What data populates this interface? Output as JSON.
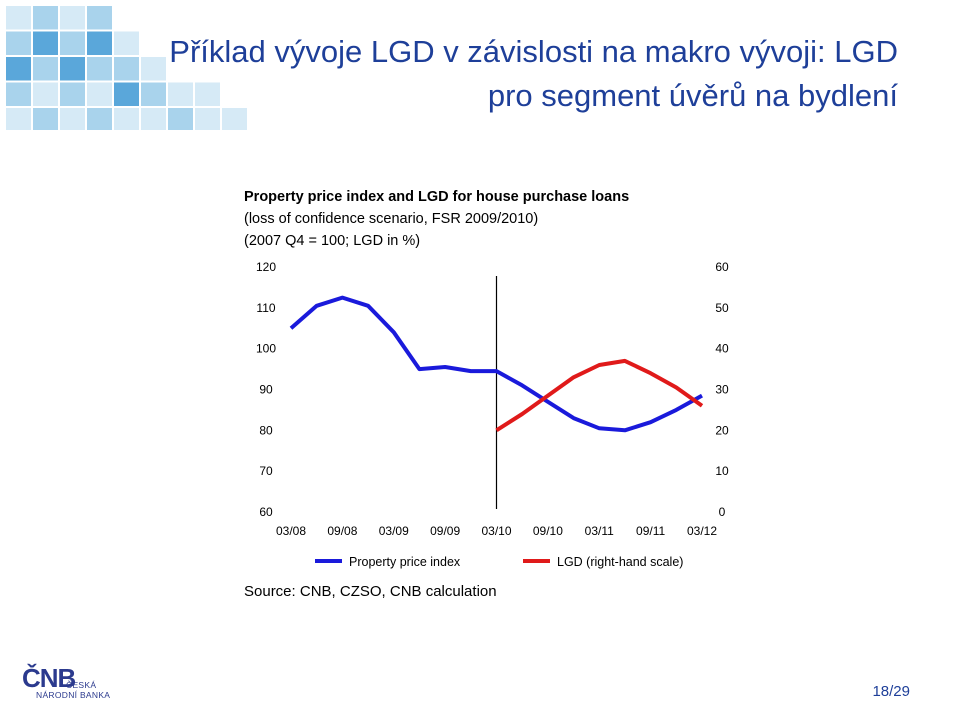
{
  "slide": {
    "title_line1": "Příklad vývoje LGD v závislosti na makro vývoji: LGD",
    "title_line2": "pro segment úvěrů na bydlení",
    "source": "Source: CNB, CZSO, CNB calculation",
    "page_number": "18/29",
    "logo": {
      "mark": "ČNB",
      "line1": "ČESKÁ",
      "line2": "NÁRODNÍ BANKA"
    },
    "colors": {
      "title": "#1E3F99",
      "deco_light": "#A9D3EC",
      "deco_mid": "#5AA7DA",
      "deco_pale": "#D6EAF6"
    }
  },
  "chart_data": {
    "type": "line",
    "title": "Property price index and LGD for house purchase loans",
    "subtitle_1": "(loss of confidence scenario, FSR 2009/2010)",
    "subtitle_2": "(2007 Q4 = 100; LGD in %)",
    "x_ticks": [
      "03/08",
      "09/08",
      "03/09",
      "09/09",
      "03/10",
      "09/10",
      "03/11",
      "09/11",
      "03/12"
    ],
    "left_axis": {
      "ylim": [
        60,
        120
      ],
      "ticks": [
        "120",
        "110",
        "100",
        "90",
        "80",
        "70",
        "60"
      ]
    },
    "right_axis": {
      "ylim": [
        0,
        60
      ],
      "ticks": [
        "60",
        "50",
        "40",
        "30",
        "20",
        "10",
        "0"
      ]
    },
    "forecast_start": "03/10",
    "legend_position": "bottom",
    "series": [
      {
        "name": "Property price index",
        "axis": "left",
        "color": "#1A1ADB",
        "x": [
          "03/08",
          "06/08",
          "09/08",
          "12/08",
          "03/09",
          "06/09",
          "09/09",
          "12/09",
          "03/10",
          "06/10",
          "09/10",
          "12/10",
          "03/11",
          "06/11",
          "09/11",
          "12/11",
          "03/12"
        ],
        "values": [
          105,
          110.5,
          112.5,
          110.5,
          104,
          95,
          95.5,
          94.5,
          94.5,
          91,
          87,
          83,
          80.5,
          80,
          82,
          85,
          88.5
        ]
      },
      {
        "name": "LGD (right-hand scale)",
        "axis": "right",
        "color": "#E01A1A",
        "x": [
          "03/10",
          "06/10",
          "09/10",
          "12/10",
          "03/11",
          "06/11",
          "09/11",
          "12/11",
          "03/12"
        ],
        "values": [
          20,
          24,
          28.5,
          33,
          36,
          37,
          34,
          30.5,
          26
        ]
      }
    ]
  }
}
